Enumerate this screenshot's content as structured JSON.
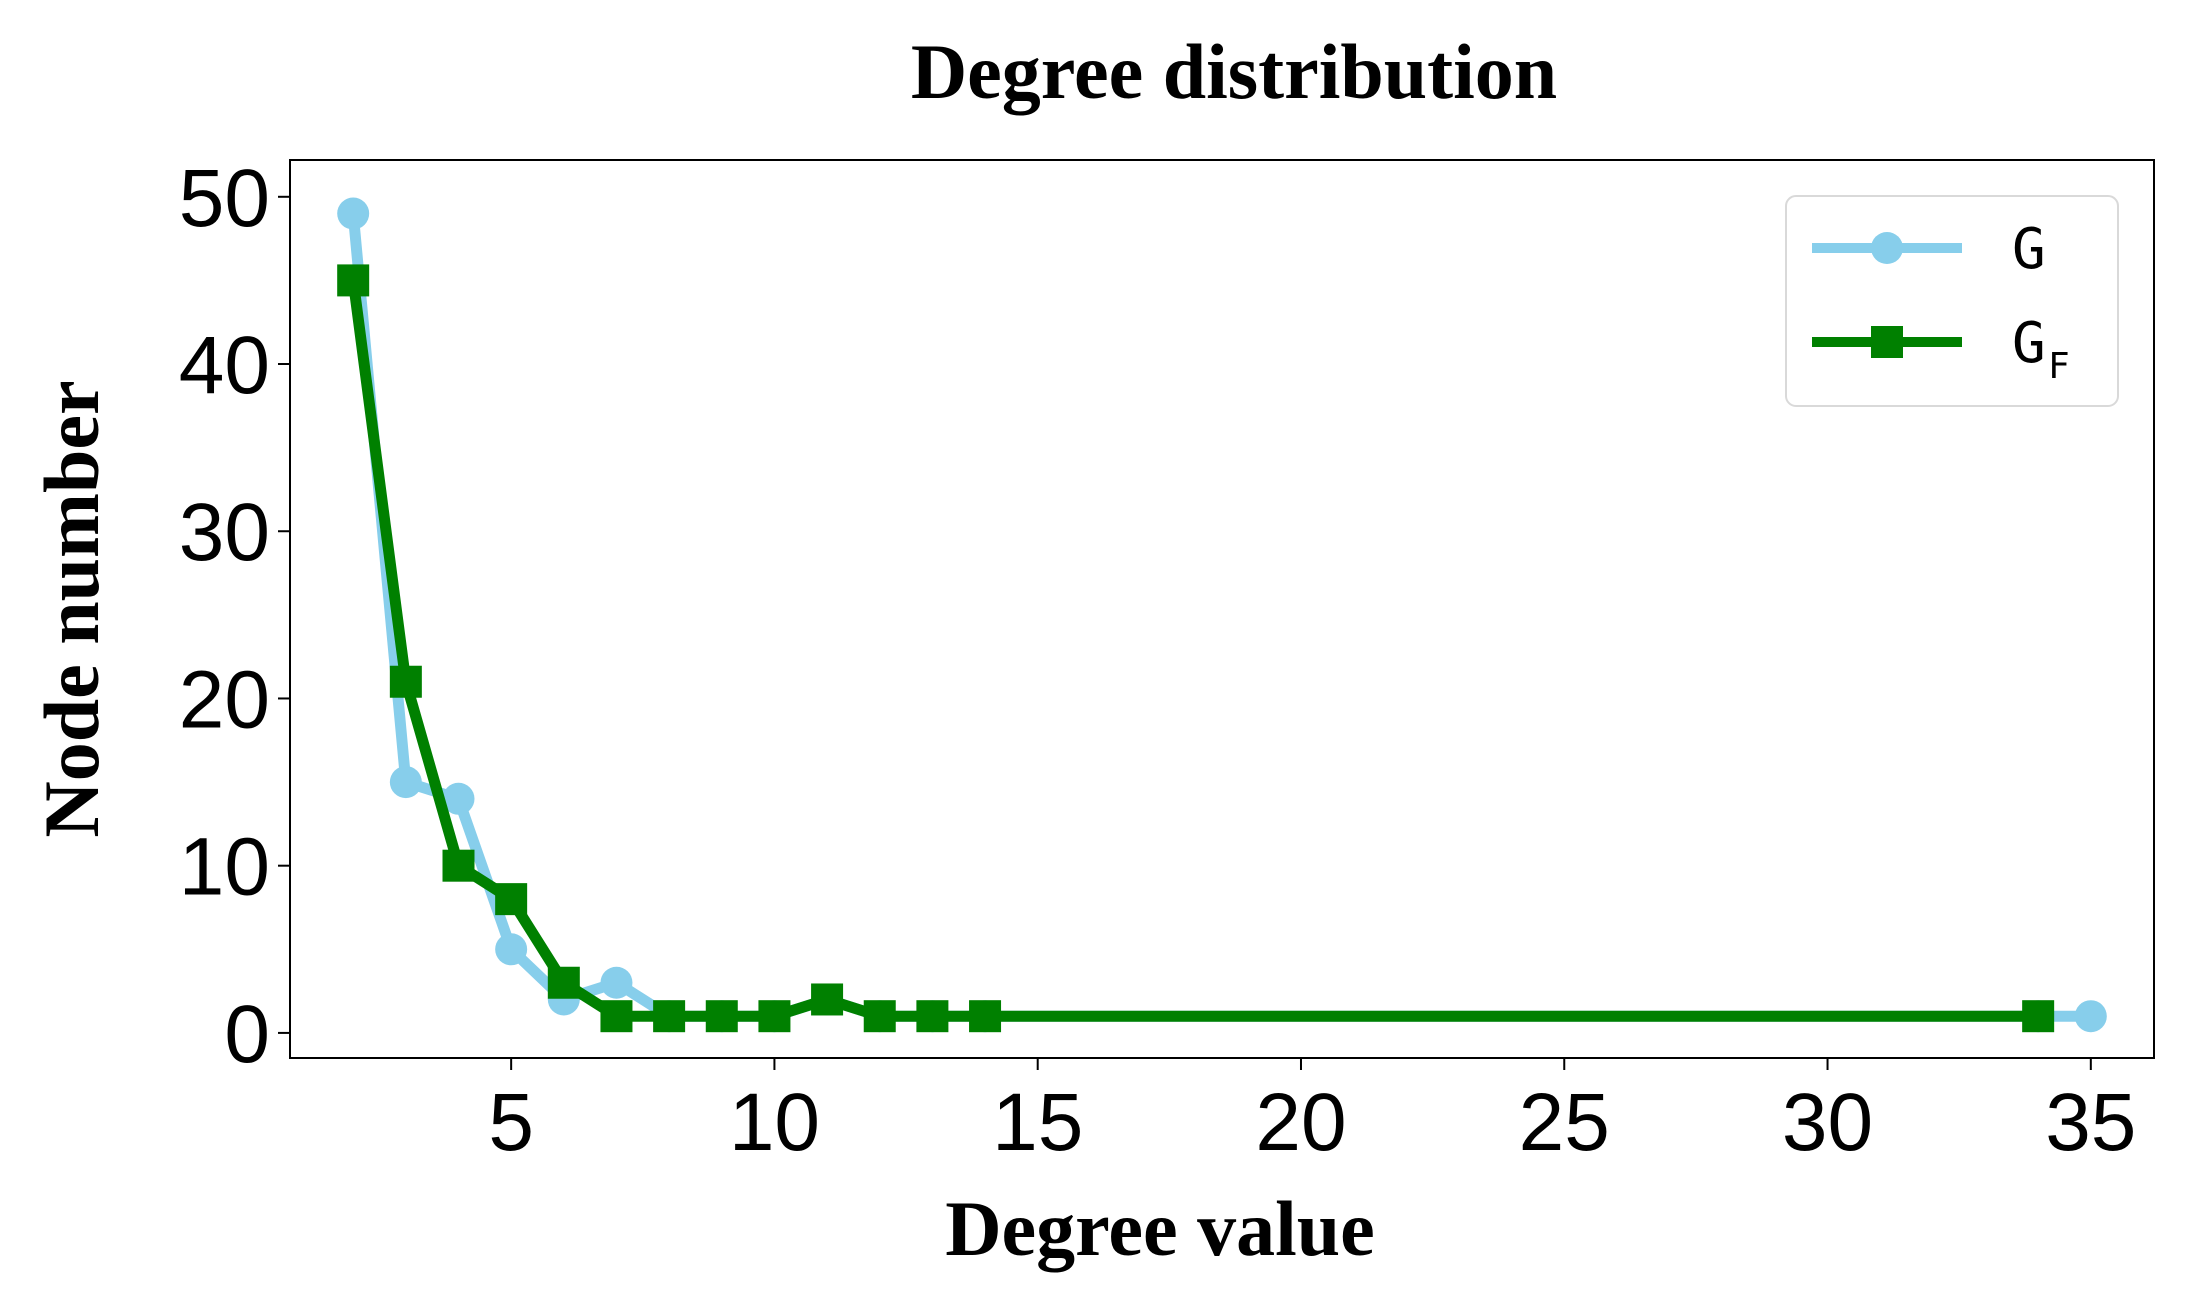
{
  "chart_data": {
    "type": "line",
    "title": "Degree distribution",
    "xlabel": "Degree value",
    "ylabel": "Node number",
    "xlim": [
      0.8,
      36.2
    ],
    "ylim": [
      -1.5,
      52.2
    ],
    "xticks": [
      5,
      10,
      15,
      20,
      25,
      30,
      35
    ],
    "yticks": [
      0,
      10,
      20,
      30,
      40,
      50
    ],
    "grid": false,
    "legend_position": "top-right",
    "series": [
      {
        "name": "G",
        "name_sub": "",
        "color": "#87ceeb",
        "marker": "circle",
        "x": [
          2,
          3,
          4,
          5,
          6,
          7,
          8,
          9,
          10,
          11,
          12,
          13,
          14,
          34,
          35
        ],
        "y": [
          49,
          15,
          14,
          5,
          2,
          3,
          1,
          1,
          1,
          2,
          1,
          1,
          1,
          1,
          1
        ]
      },
      {
        "name": "G",
        "name_sub": "F",
        "color": "#008000",
        "marker": "square",
        "x": [
          2,
          3,
          4,
          5,
          6,
          7,
          8,
          9,
          10,
          11,
          12,
          13,
          14,
          34
        ],
        "y": [
          45,
          21,
          10,
          8,
          3,
          1,
          1,
          1,
          1,
          2,
          1,
          1,
          1,
          1
        ]
      }
    ]
  }
}
